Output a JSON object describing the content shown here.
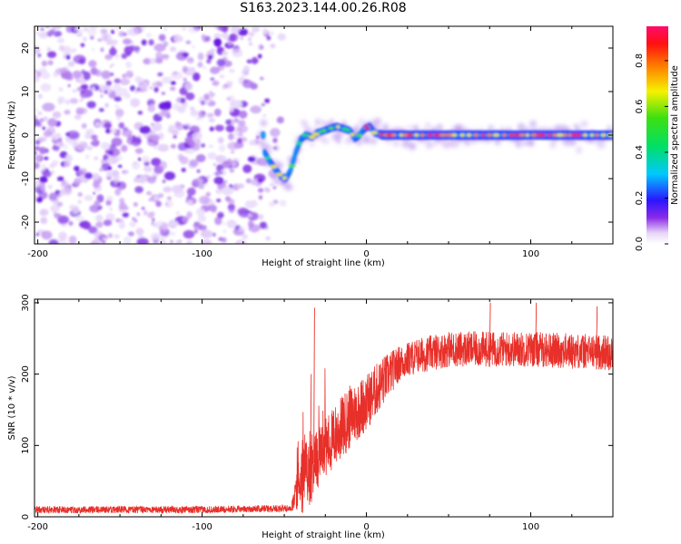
{
  "title": "S163.2023.144.00.26.R08",
  "chart_data": [
    {
      "type": "heatmap",
      "name": "spectrogram",
      "xlabel": "Height of straight line (km)",
      "ylabel": "Frequency (Hz)",
      "xlim": [
        -202,
        150
      ],
      "ylim": [
        -25,
        25
      ],
      "xticks": [
        -200,
        -100,
        0,
        100
      ],
      "yticks": [
        -20,
        -10,
        0,
        10,
        20
      ],
      "noise_region_x": [
        -202,
        -55
      ],
      "ridge": [
        {
          "x": -62,
          "y": -4
        },
        {
          "x": -58,
          "y": -6.5
        },
        {
          "x": -55,
          "y": -8
        },
        {
          "x": -52,
          "y": -9.5
        },
        {
          "x": -49,
          "y": -10
        },
        {
          "x": -46,
          "y": -8
        },
        {
          "x": -43,
          "y": -4
        },
        {
          "x": -40,
          "y": -1
        },
        {
          "x": -37,
          "y": 0
        },
        {
          "x": -33,
          "y": -0.5
        },
        {
          "x": -30,
          "y": 0.5
        },
        {
          "x": -26,
          "y": 1
        },
        {
          "x": -22,
          "y": 1.5
        },
        {
          "x": -18,
          "y": 2
        },
        {
          "x": -14,
          "y": 1.5
        },
        {
          "x": -10,
          "y": 1
        },
        {
          "x": -7,
          "y": -0.8
        },
        {
          "x": -4,
          "y": 0
        },
        {
          "x": -1,
          "y": 1.5
        },
        {
          "x": 2,
          "y": 2
        },
        {
          "x": 5,
          "y": 0.5
        },
        {
          "x": 10,
          "y": 0
        },
        {
          "x": 150,
          "y": 0
        }
      ],
      "colorbar": {
        "label": "Normalized spectral amplitude",
        "ticks": [
          "0.0",
          "0.2",
          "0.4",
          "0.6",
          "0.8"
        ],
        "tick_values": [
          0.0,
          0.2,
          0.4,
          0.6,
          0.8
        ],
        "range": [
          0,
          0.95
        ]
      }
    },
    {
      "type": "line",
      "name": "snr",
      "xlabel": "Height of straight line (km)",
      "ylabel": "SNR (10 * v/v)",
      "xlim": [
        -202,
        150
      ],
      "ylim": [
        0,
        305
      ],
      "xticks": [
        -200,
        -100,
        0,
        100
      ],
      "yticks": [
        0,
        100,
        200,
        300
      ],
      "color": "#e8302a",
      "envelope": [
        {
          "x": -202,
          "mean": 10,
          "spread": 5
        },
        {
          "x": -100,
          "mean": 10,
          "spread": 5
        },
        {
          "x": -46,
          "mean": 12,
          "spread": 5
        },
        {
          "x": -42,
          "mean": 40,
          "spread": 30
        },
        {
          "x": -38,
          "mean": 60,
          "spread": 60
        },
        {
          "x": -30,
          "mean": 80,
          "spread": 45
        },
        {
          "x": -20,
          "mean": 110,
          "spread": 45
        },
        {
          "x": -10,
          "mean": 140,
          "spread": 45
        },
        {
          "x": 0,
          "mean": 160,
          "spread": 40
        },
        {
          "x": 10,
          "mean": 190,
          "spread": 35
        },
        {
          "x": 20,
          "mean": 215,
          "spread": 25
        },
        {
          "x": 30,
          "mean": 225,
          "spread": 25
        },
        {
          "x": 50,
          "mean": 235,
          "spread": 25
        },
        {
          "x": 100,
          "mean": 235,
          "spread": 25
        },
        {
          "x": 150,
          "mean": 230,
          "spread": 25
        }
      ],
      "spikes": [
        {
          "x": -32,
          "y": 293
        },
        {
          "x": -34,
          "y": 200
        },
        {
          "x": 75,
          "y": 300
        },
        {
          "x": 103,
          "y": 300
        },
        {
          "x": 140,
          "y": 295
        }
      ]
    }
  ]
}
